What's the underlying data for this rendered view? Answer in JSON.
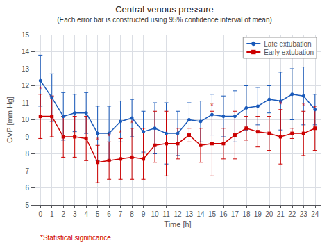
{
  "chart_data": {
    "type": "line",
    "title": "Central venous pressure",
    "subtitle": "(Each error bar is constructed using 95% confidence interval of mean)",
    "xlabel": "Time [h]",
    "ylabel": "CVP [mm Hg]",
    "x": [
      0,
      1,
      2,
      3,
      4,
      5,
      6,
      7,
      8,
      9,
      10,
      11,
      12,
      13,
      14,
      15,
      16,
      17,
      18,
      19,
      20,
      21,
      22,
      23,
      24
    ],
    "xlim": [
      -0.5,
      24.5
    ],
    "xticks": [
      0,
      1,
      2,
      3,
      4,
      5,
      6,
      7,
      8,
      9,
      10,
      11,
      12,
      13,
      14,
      15,
      16,
      17,
      18,
      19,
      20,
      21,
      22,
      23,
      24
    ],
    "ylim": [
      5,
      15
    ],
    "yticks": [
      5,
      6,
      7,
      8,
      9,
      10,
      11,
      12,
      13,
      14,
      15
    ],
    "grid": true,
    "legend": "upper right",
    "series": [
      {
        "name": "Late extubation",
        "color": "#1a5aba",
        "marker": "circle",
        "line_style": "solid",
        "values": [
          12.3,
          11.3,
          10.2,
          10.4,
          10.4,
          9.2,
          9.2,
          9.9,
          10.1,
          9.3,
          9.5,
          9.2,
          9.2,
          10.0,
          9.9,
          10.3,
          10.2,
          10.2,
          10.7,
          10.8,
          11.2,
          11.1,
          11.5,
          11.4,
          10.6
        ],
        "ci_upper": [
          13.8,
          12.7,
          11.6,
          11.5,
          11.6,
          10.8,
          10.8,
          11.1,
          11.2,
          10.5,
          11.0,
          11.0,
          10.5,
          11.0,
          11.1,
          11.5,
          11.4,
          11.7,
          12.0,
          11.9,
          12.0,
          12.8,
          13.0,
          13.1,
          11.5
        ],
        "ci_lower": [
          10.8,
          9.9,
          8.8,
          9.3,
          9.2,
          7.6,
          7.6,
          8.7,
          9.0,
          8.1,
          8.0,
          7.4,
          7.9,
          9.0,
          8.7,
          9.1,
          9.0,
          8.7,
          9.4,
          9.7,
          10.4,
          9.4,
          10.0,
          9.7,
          9.7
        ]
      },
      {
        "name": "Early extubation",
        "color": "#cc0000",
        "marker": "square",
        "line_style": "solid",
        "values": [
          10.2,
          10.2,
          9.0,
          9.0,
          8.9,
          7.5,
          7.6,
          7.7,
          7.8,
          7.7,
          8.5,
          8.6,
          8.6,
          9.1,
          8.5,
          8.6,
          8.6,
          9.1,
          9.5,
          9.3,
          9.2,
          9.0,
          9.2,
          9.2,
          9.5
        ],
        "ci_upper": [
          11.5,
          11.4,
          10.2,
          10.2,
          10.2,
          8.5,
          8.7,
          8.9,
          9.5,
          9.5,
          10.5,
          10.5,
          9.5,
          9.5,
          9.5,
          10.5,
          9.5,
          10.5,
          10.2,
          10.2,
          10.2,
          10.6,
          9.5,
          10.5,
          10.8
        ],
        "ci_lower": [
          8.9,
          9.0,
          7.8,
          7.8,
          7.6,
          6.3,
          6.5,
          6.5,
          6.5,
          6.5,
          7.5,
          6.7,
          7.7,
          8.7,
          7.5,
          6.7,
          7.7,
          7.7,
          8.8,
          8.4,
          8.2,
          7.4,
          8.9,
          7.9,
          8.2
        ]
      }
    ],
    "annotations": [
      {
        "x": 0,
        "y": 11.5,
        "text": "*",
        "color": "#cc0000"
      },
      {
        "x": 5,
        "y": 8.5,
        "text": "*",
        "color": "#cc0000"
      },
      {
        "x": 6,
        "y": 8.7,
        "text": "*",
        "color": "#cc0000"
      },
      {
        "x": 7,
        "y": 8.9,
        "text": "*",
        "color": "#cc0000"
      },
      {
        "x": 8,
        "y": 9.5,
        "text": "*",
        "color": "#cc0000"
      },
      {
        "x": 15,
        "y": 10.5,
        "text": "*",
        "color": "#cc0000"
      },
      {
        "x": 21,
        "y": 10.6,
        "text": "*",
        "color": "#cc0000"
      },
      {
        "x": 23,
        "y": 10.5,
        "text": "*",
        "color": "#cc0000"
      }
    ],
    "footnote": {
      "text": "*Statistical significance",
      "color": "#cc0000"
    }
  }
}
